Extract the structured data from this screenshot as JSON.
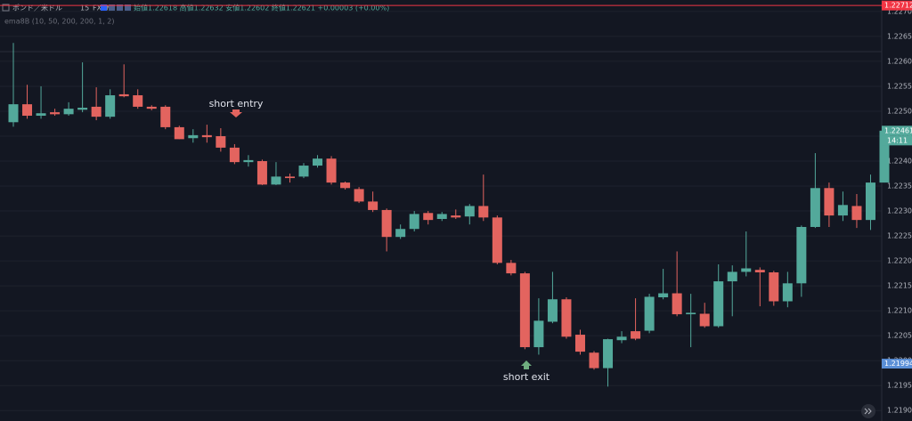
{
  "chart_data": {
    "type": "candlestick",
    "header": {
      "symbol": "ポンド／米ドル",
      "interval": "15",
      "source": "FXCM",
      "ohlc": "始値1.22618 高値1.22632 安値1.22602 終値1.22621 +0.00003 (+0.00%)",
      "indicator": "ema8B (10, 50, 200, 200, 1, 2)"
    },
    "up_color": "#53a99b",
    "down_color": "#e3645f",
    "grid": true,
    "ylim": [
      1.21879,
      1.22723
    ],
    "yticks": [
      {
        "value": 1.227,
        "label": "1.22700"
      },
      {
        "value": 1.2265,
        "label": "1.22650"
      },
      {
        "value": 1.226,
        "label": "1.22600"
      },
      {
        "value": 1.2255,
        "label": "1.22550"
      },
      {
        "value": 1.225,
        "label": "1.22500"
      },
      {
        "value": 1.2245,
        "label": "1.22450"
      },
      {
        "value": 1.224,
        "label": "1.22400"
      },
      {
        "value": 1.2235,
        "label": "1.22350"
      },
      {
        "value": 1.223,
        "label": "1.22300"
      },
      {
        "value": 1.2225,
        "label": "1.22250"
      },
      {
        "value": 1.222,
        "label": "1.22200"
      },
      {
        "value": 1.2215,
        "label": "1.22150"
      },
      {
        "value": 1.221,
        "label": "1.22100"
      },
      {
        "value": 1.2205,
        "label": "1.22050"
      },
      {
        "value": 1.22,
        "label": "1.22000"
      },
      {
        "value": 1.2195,
        "label": "1.21950"
      },
      {
        "value": 1.219,
        "label": "1.21900"
      }
    ],
    "open": [
      1.22478,
      1.22514,
      1.22491,
      1.22498,
      1.22494,
      1.22503,
      1.22509,
      1.22489,
      1.22534,
      1.22532,
      1.22509,
      1.22509,
      1.22468,
      1.22446,
      1.22452,
      1.2245,
      1.22427,
      1.22398,
      1.224,
      1.22353,
      1.22369,
      1.22369,
      1.22391,
      1.22405,
      1.22357,
      1.22344,
      1.22319,
      1.22302,
      1.22248,
      1.22264,
      1.22296,
      1.22284,
      1.22291,
      1.22289,
      1.2231,
      1.22287,
      1.22196,
      1.22175,
      1.22027,
      1.22078,
      1.22123,
      1.22052,
      1.22016,
      1.21985,
      1.22041,
      1.22059,
      1.2206,
      1.22127,
      1.22135,
      1.22093,
      1.22094,
      1.22069,
      1.22159,
      1.22178,
      1.22182,
      1.22177,
      1.22119,
      1.22155,
      1.22268,
      1.22346,
      1.22291,
      1.2231,
      1.22282,
      1.22357
    ],
    "high": [
      1.22637,
      1.22553,
      1.2255,
      1.22505,
      1.22518,
      1.22598,
      1.22548,
      1.22544,
      1.22594,
      1.22544,
      1.22512,
      1.22512,
      1.22471,
      1.22464,
      1.22473,
      1.22466,
      1.22434,
      1.22412,
      1.22403,
      1.22398,
      1.22375,
      1.22396,
      1.22412,
      1.2241,
      1.22359,
      1.22348,
      1.22339,
      1.22305,
      1.22273,
      1.223,
      1.223,
      1.22298,
      1.22303,
      1.22314,
      1.22373,
      1.22291,
      1.22202,
      1.22178,
      1.22125,
      1.22178,
      1.22127,
      1.22062,
      1.22019,
      1.22044,
      1.22059,
      1.22125,
      1.22134,
      1.22184,
      1.22219,
      1.22134,
      1.22116,
      1.22193,
      1.22191,
      1.22259,
      1.22187,
      1.2218,
      1.22178,
      1.22271,
      1.22416,
      1.22357,
      1.22339,
      1.22334,
      1.22373,
      1.22464
    ],
    "low": [
      1.22469,
      1.22485,
      1.22485,
      1.22491,
      1.22491,
      1.22498,
      1.22482,
      1.22485,
      1.22528,
      1.22505,
      1.22502,
      1.22464,
      1.22444,
      1.22437,
      1.22437,
      1.22419,
      1.22394,
      1.22389,
      1.22352,
      1.22352,
      1.22357,
      1.22366,
      1.22387,
      1.22353,
      1.22343,
      1.22316,
      1.22298,
      1.22219,
      1.22244,
      1.22259,
      1.22273,
      1.2228,
      1.22284,
      1.22273,
      1.2228,
      1.22193,
      1.22171,
      1.22023,
      1.22012,
      1.22075,
      1.22044,
      1.22012,
      1.21982,
      1.21948,
      1.22035,
      1.22041,
      1.22055,
      1.22123,
      1.22089,
      1.22027,
      1.22066,
      1.22066,
      1.22089,
      1.22169,
      1.22109,
      1.2211,
      1.22107,
      1.22128,
      1.22266,
      1.22268,
      1.2228,
      1.22266,
      1.22262,
      1.22357
    ],
    "close": [
      1.22514,
      1.22491,
      1.22496,
      1.22494,
      1.22505,
      1.22507,
      1.22489,
      1.22532,
      1.2253,
      1.22509,
      1.22505,
      1.22468,
      1.22444,
      1.22452,
      1.22448,
      1.22427,
      1.22398,
      1.22402,
      1.22353,
      1.22369,
      1.22366,
      1.22391,
      1.22405,
      1.22357,
      1.22346,
      1.22319,
      1.22302,
      1.22248,
      1.22264,
      1.22294,
      1.22282,
      1.22294,
      1.22287,
      1.2231,
      1.22287,
      1.22196,
      1.22175,
      1.22027,
      1.2208,
      1.22123,
      1.22048,
      1.22018,
      1.21985,
      1.22043,
      1.22048,
      1.22044,
      1.22128,
      1.22135,
      1.22093,
      1.22096,
      1.22069,
      1.22159,
      1.22178,
      1.22185,
      1.22177,
      1.22119,
      1.22155,
      1.22268,
      1.22346,
      1.22291,
      1.22312,
      1.22282,
      1.22357,
      1.22461
    ],
    "price_labels": [
      {
        "value": 1.22712,
        "label": "1.22712",
        "color": "#f23645"
      },
      {
        "value": 1.22461,
        "label": "1.22461",
        "color": "#53a99b"
      },
      {
        "value": 1.21994,
        "label": "1.21994",
        "color": "#5b8fd6"
      }
    ],
    "countdown": "14:11",
    "annotations": [
      {
        "text": "short entry"
      },
      {
        "text": "short exit"
      }
    ]
  }
}
